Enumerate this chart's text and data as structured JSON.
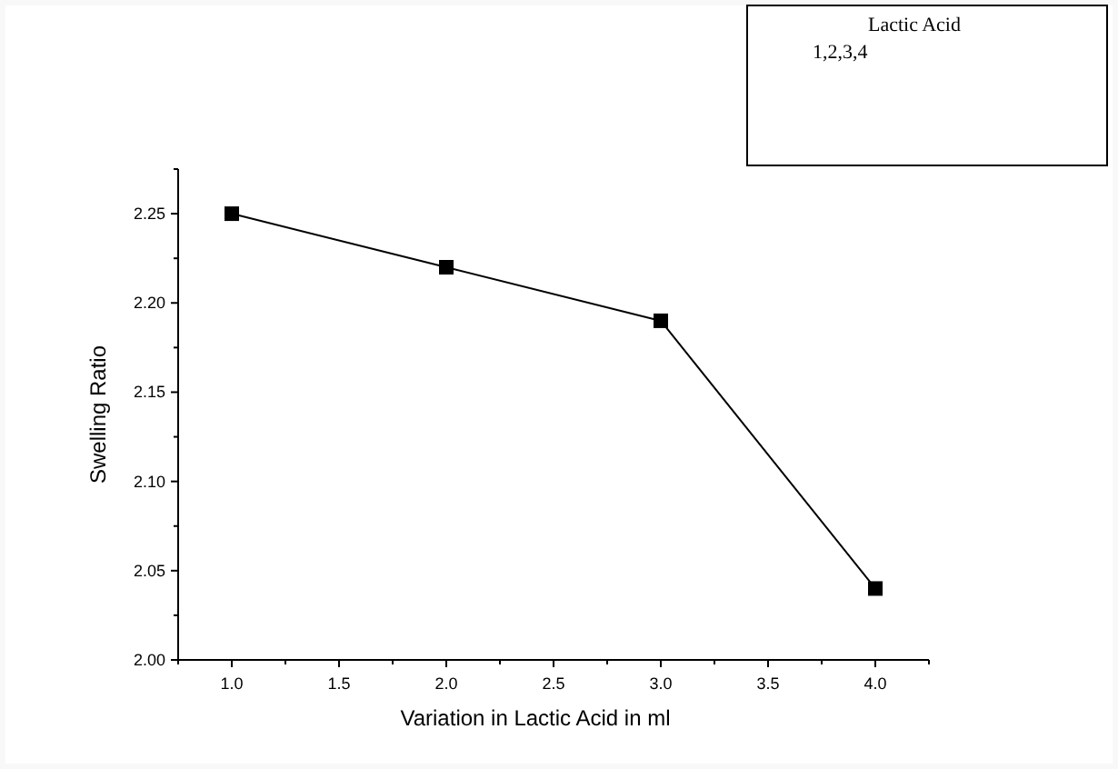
{
  "chart_data": {
    "type": "line",
    "xlabel": "Variation in Lactic Acid in ml",
    "ylabel": "Swelling Ratio",
    "annotations": [
      "Lactic Acid",
      "1,2,3,4"
    ],
    "x": [
      1,
      2,
      3,
      4
    ],
    "series": [
      {
        "color": "#000000",
        "values": [
          2.25,
          2.22,
          2.19,
          2.04
        ]
      }
    ],
    "marker": "square",
    "line_style": "solid",
    "grid": false,
    "xlim": [
      0.75,
      4.25
    ],
    "xticks": [
      {
        "value": 0.75,
        "label": null
      },
      {
        "value": 1,
        "label": "1.0"
      },
      {
        "value": 1.25,
        "label": null
      },
      1.5,
      {
        "value": 1.75,
        "label": null
      },
      {
        "value": 2,
        "label": "2.0"
      },
      {
        "value": 2.25,
        "label": null
      },
      2.5,
      {
        "value": 2.75,
        "label": null
      },
      {
        "value": 3,
        "label": "3.0"
      },
      {
        "value": 3.25,
        "label": null
      },
      3.5,
      {
        "value": 3.75,
        "label": null
      },
      {
        "value": 4,
        "label": "4.0"
      },
      {
        "value": 4.25,
        "label": null
      }
    ],
    "ylim": [
      2.0,
      2.275
    ],
    "yticks": [
      {
        "value": 2,
        "label": "2.00"
      },
      {
        "value": 2.025,
        "label": null
      },
      2.05,
      {
        "value": 2.075,
        "label": null
      },
      {
        "value": 2.1,
        "label": "2.10"
      },
      {
        "value": 2.125,
        "label": null
      },
      2.15,
      {
        "value": 2.175,
        "label": null
      },
      {
        "value": 2.2,
        "label": "2.20"
      },
      {
        "value": 2.225,
        "label": null
      },
      2.25,
      {
        "value": 2.275,
        "label": null
      }
    ]
  }
}
